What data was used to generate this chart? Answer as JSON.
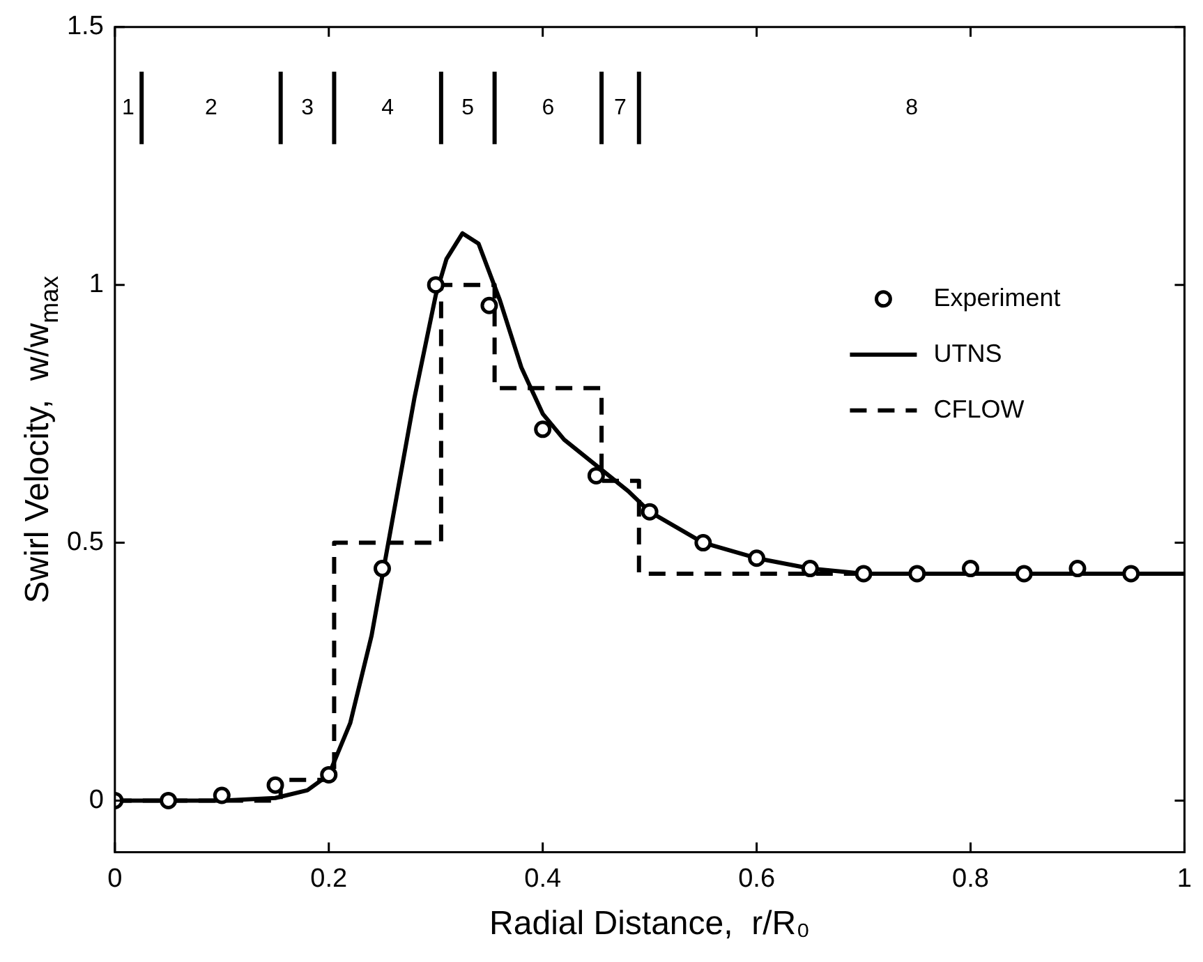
{
  "chart_data": {
    "type": "line",
    "xlabel": "Radial Distance,  r/R₀",
    "ylabel": "Swirl Velocity,  w/w$_{max}$",
    "xlim": [
      0,
      1
    ],
    "xticks": [
      0,
      0.2,
      0.4,
      0.6,
      0.8,
      1
    ],
    "ylim": [
      -0.1,
      1.5
    ],
    "yticks": [
      0,
      0.5,
      1,
      1.5
    ],
    "grid": false,
    "legend": "top right",
    "series": [
      {
        "name": "Experiment",
        "type": "scatter",
        "marker": "circle",
        "color": "#000000",
        "x": [
          0,
          0.05,
          0.1,
          0.15,
          0.2,
          0.25,
          0.3,
          0.35,
          0.4,
          0.45,
          0.5,
          0.55,
          0.6,
          0.65,
          0.7,
          0.75,
          0.8,
          0.85,
          0.9,
          0.95
        ],
        "values": [
          0,
          0,
          0.01,
          0.03,
          0.05,
          0.45,
          1.0,
          0.96,
          0.72,
          0.63,
          0.56,
          0.5,
          0.47,
          0.45,
          0.44,
          0.44,
          0.45,
          0.44,
          0.45,
          0.44
        ]
      },
      {
        "name": "UTNS",
        "line_style": "solid",
        "color": "#000000",
        "x": [
          0,
          0.1,
          0.15,
          0.18,
          0.2,
          0.22,
          0.24,
          0.26,
          0.28,
          0.3,
          0.31,
          0.325,
          0.34,
          0.36,
          0.38,
          0.4,
          0.42,
          0.45,
          0.48,
          0.5,
          0.55,
          0.6,
          0.65,
          0.7,
          0.8,
          0.9,
          1
        ],
        "values": [
          0,
          0,
          0.005,
          0.02,
          0.05,
          0.15,
          0.32,
          0.55,
          0.78,
          0.98,
          1.05,
          1.1,
          1.08,
          0.97,
          0.84,
          0.75,
          0.7,
          0.65,
          0.6,
          0.56,
          0.5,
          0.47,
          0.45,
          0.44,
          0.44,
          0.44,
          0.44
        ]
      },
      {
        "name": "CFLOW",
        "line_style": "dashed",
        "color": "#000000",
        "x": [
          0,
          0.155,
          0.155,
          0.205,
          0.205,
          0.305,
          0.305,
          0.355,
          0.355,
          0.455,
          0.455,
          0.49,
          0.49,
          1
        ],
        "values": [
          0,
          0,
          0.04,
          0.04,
          0.5,
          0.5,
          1,
          1,
          0.8,
          0.8,
          0.62,
          0.62,
          0.44,
          0.44
        ]
      }
    ],
    "ref_lines": [
      {
        "axis": "x",
        "value": 0.025
      },
      {
        "axis": "x",
        "value": 0.155
      },
      {
        "axis": "x",
        "value": 0.205
      },
      {
        "axis": "x",
        "value": 0.305
      },
      {
        "axis": "x",
        "value": 0.355
      },
      {
        "axis": "x",
        "value": 0.455
      },
      {
        "axis": "x",
        "value": 0.49
      }
    ],
    "annotations": [
      "1",
      "2",
      "3",
      "4",
      "5",
      "6",
      "7",
      "8"
    ]
  }
}
